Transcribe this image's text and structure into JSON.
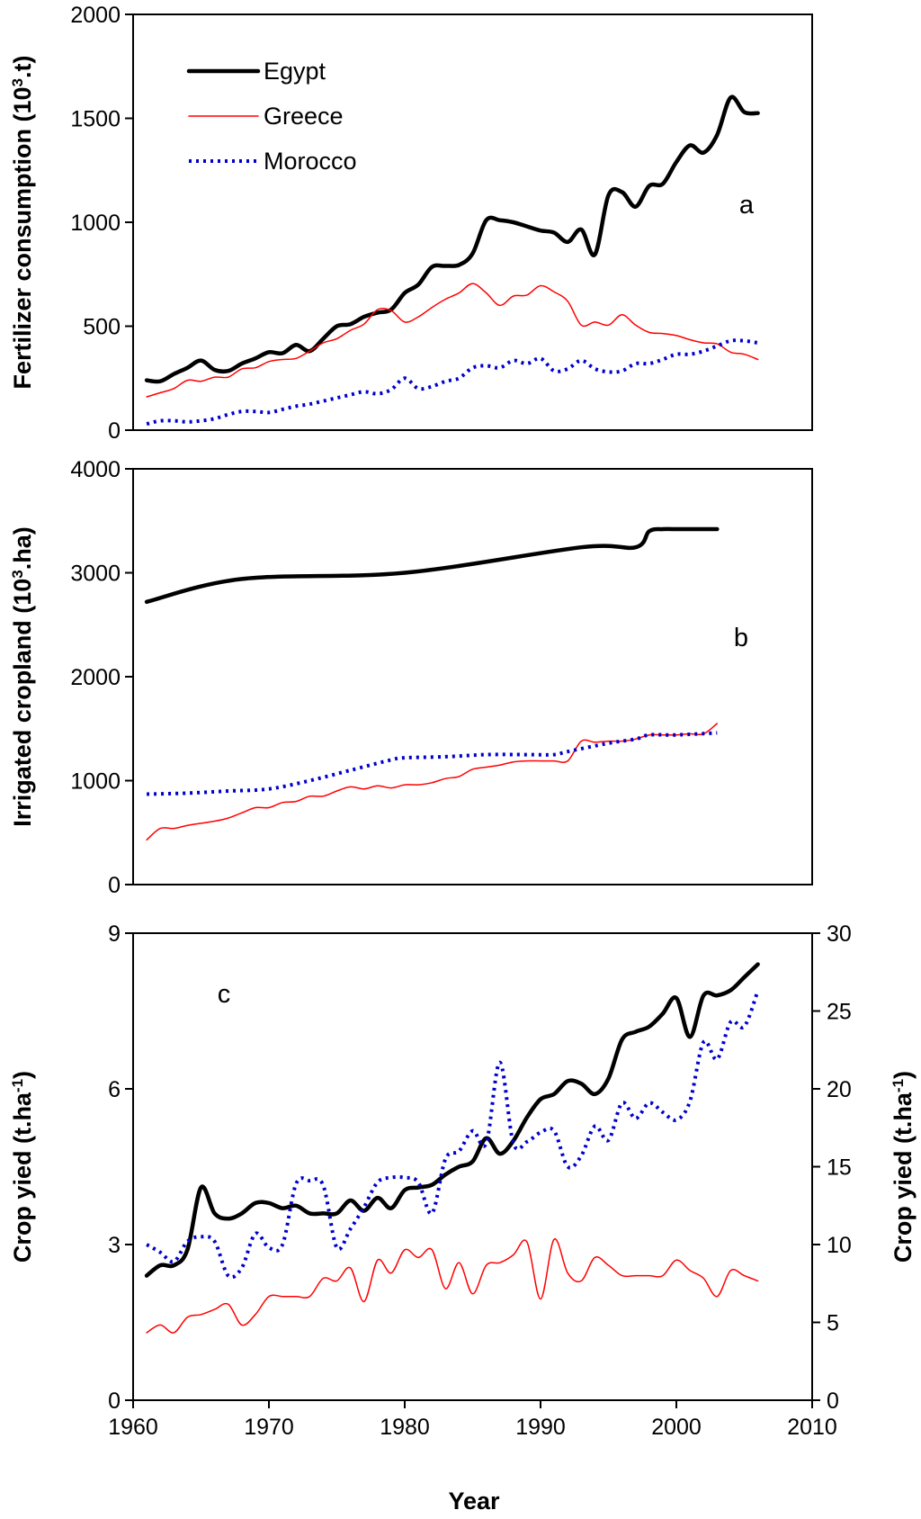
{
  "x_axis": {
    "label": "Year",
    "ticks": [
      "1960",
      "1970",
      "1980",
      "1990",
      "2000",
      "2010"
    ]
  },
  "legend": [
    {
      "name": "Egypt",
      "style": "solid-thick",
      "color": "#000000"
    },
    {
      "name": "Greece",
      "style": "solid-thin",
      "color": "#ff0000"
    },
    {
      "name": "Morocco",
      "style": "dotted",
      "color": "#0000cc"
    }
  ],
  "chart_data": [
    {
      "type": "line",
      "panel_letter": "a",
      "ylabel": "Fertilizer consumption (10³.t)",
      "ylabel_parts": [
        "Fertilizer consumption (10",
        "3",
        ".t)"
      ],
      "xlim": [
        1960,
        2010
      ],
      "ylim": [
        0,
        2000
      ],
      "yticks": [
        "0",
        "500",
        "1000",
        "1500",
        "2000"
      ],
      "legend_position": "top-left",
      "series": [
        {
          "name": "Egypt",
          "color": "#000000",
          "style": "solid-thick",
          "x": [
            1961,
            1962,
            1963,
            1964,
            1965,
            1966,
            1967,
            1968,
            1969,
            1970,
            1971,
            1972,
            1973,
            1974,
            1975,
            1976,
            1977,
            1978,
            1979,
            1980,
            1981,
            1982,
            1983,
            1984,
            1985,
            1986,
            1987,
            1988,
            1989,
            1990,
            1991,
            1992,
            1993,
            1994,
            1995,
            1996,
            1997,
            1998,
            1999,
            2000,
            2001,
            2002,
            2003,
            2004,
            2005,
            2006
          ],
          "y": [
            240,
            235,
            270,
            300,
            335,
            290,
            285,
            320,
            345,
            375,
            370,
            410,
            380,
            440,
            500,
            510,
            545,
            565,
            580,
            660,
            700,
            785,
            790,
            795,
            850,
            1010,
            1010,
            1000,
            980,
            960,
            950,
            905,
            965,
            845,
            1130,
            1145,
            1075,
            1175,
            1185,
            1290,
            1370,
            1335,
            1420,
            1600,
            1530,
            1525
          ]
        },
        {
          "name": "Greece",
          "color": "#ff0000",
          "style": "solid-thin",
          "x": [
            1961,
            1962,
            1963,
            1964,
            1965,
            1966,
            1967,
            1968,
            1969,
            1970,
            1971,
            1972,
            1973,
            1974,
            1975,
            1976,
            1977,
            1978,
            1979,
            1980,
            1981,
            1982,
            1983,
            1984,
            1985,
            1986,
            1987,
            1988,
            1989,
            1990,
            1991,
            1992,
            1993,
            1994,
            1995,
            1996,
            1997,
            1998,
            1999,
            2000,
            2001,
            2002,
            2003,
            2004,
            2005,
            2006
          ],
          "y": [
            160,
            180,
            200,
            240,
            235,
            255,
            255,
            295,
            300,
            330,
            340,
            345,
            380,
            420,
            440,
            480,
            510,
            580,
            575,
            520,
            545,
            590,
            630,
            660,
            705,
            660,
            600,
            645,
            650,
            695,
            665,
            620,
            505,
            520,
            505,
            555,
            505,
            470,
            465,
            455,
            435,
            420,
            415,
            375,
            365,
            340
          ]
        },
        {
          "name": "Morocco",
          "color": "#0000cc",
          "style": "dotted",
          "x": [
            1961,
            1962,
            1963,
            1964,
            1965,
            1966,
            1967,
            1968,
            1969,
            1970,
            1971,
            1972,
            1973,
            1974,
            1975,
            1976,
            1977,
            1978,
            1979,
            1980,
            1981,
            1982,
            1983,
            1984,
            1985,
            1986,
            1987,
            1988,
            1989,
            1990,
            1991,
            1992,
            1993,
            1994,
            1995,
            1996,
            1997,
            1998,
            1999,
            2000,
            2001,
            2002,
            2003,
            2004,
            2005,
            2006
          ],
          "y": [
            30,
            45,
            45,
            40,
            45,
            55,
            75,
            90,
            90,
            85,
            100,
            115,
            125,
            140,
            155,
            170,
            185,
            175,
            195,
            250,
            200,
            210,
            235,
            250,
            300,
            310,
            300,
            335,
            320,
            345,
            285,
            295,
            335,
            295,
            280,
            285,
            320,
            320,
            340,
            365,
            365,
            380,
            405,
            430,
            430,
            420
          ]
        }
      ]
    },
    {
      "type": "line",
      "panel_letter": "b",
      "ylabel": "Irrigated cropland (10³.ha)",
      "ylabel_parts": [
        "Irrigated cropland (10",
        "3",
        ".ha)"
      ],
      "xlim": [
        1960,
        2010
      ],
      "ylim": [
        0,
        4000
      ],
      "yticks": [
        "0",
        "1000",
        "2000",
        "3000",
        "4000"
      ],
      "series": [
        {
          "name": "Egypt",
          "color": "#000000",
          "style": "solid-thick",
          "x": [
            1961,
            1968,
            1980,
            1993,
            1997,
            1998,
            1999,
            2000,
            2003
          ],
          "y": [
            2720,
            2940,
            3000,
            3245,
            3245,
            3400,
            3420,
            3420,
            3420
          ]
        },
        {
          "name": "Greece",
          "color": "#ff0000",
          "style": "solid-thin",
          "x": [
            1961,
            1962,
            1963,
            1964,
            1965,
            1966,
            1967,
            1968,
            1969,
            1970,
            1971,
            1972,
            1973,
            1974,
            1975,
            1976,
            1977,
            1978,
            1979,
            1980,
            1981,
            1982,
            1983,
            1984,
            1985,
            1986,
            1987,
            1988,
            1989,
            1990,
            1991,
            1992,
            1993,
            1994,
            1995,
            1996,
            1997,
            1998,
            1999,
            2000,
            2001,
            2002,
            2003
          ],
          "y": [
            430,
            540,
            540,
            570,
            590,
            610,
            640,
            690,
            740,
            740,
            790,
            800,
            850,
            850,
            900,
            940,
            920,
            950,
            930,
            960,
            960,
            980,
            1020,
            1040,
            1110,
            1130,
            1150,
            1180,
            1190,
            1190,
            1190,
            1190,
            1380,
            1370,
            1380,
            1380,
            1400,
            1440,
            1440,
            1440,
            1450,
            1450,
            1550
          ]
        },
        {
          "name": "Morocco",
          "color": "#0000cc",
          "style": "dotted",
          "x": [
            1961,
            1964,
            1967,
            1970,
            1973,
            1976,
            1979,
            1980,
            1983,
            1986,
            1989,
            1991,
            1992,
            1995,
            1997,
            1998,
            2000,
            2003
          ],
          "y": [
            870,
            880,
            900,
            920,
            1000,
            1100,
            1200,
            1220,
            1230,
            1250,
            1250,
            1250,
            1280,
            1360,
            1400,
            1440,
            1440,
            1460
          ]
        }
      ]
    },
    {
      "type": "line",
      "panel_letter": "c",
      "ylabel": "Crop yied (t.ha⁻¹)",
      "ylabel_parts": [
        "Crop yied (t.ha",
        "-1",
        ")"
      ],
      "ylabel_right": "Crop yied (t.ha⁻¹)",
      "ylabel_right_parts": [
        "Crop yied (t.ha",
        "-1",
        ")"
      ],
      "xlabel": "Year",
      "xlim": [
        1960,
        2010
      ],
      "ylim": [
        0,
        9
      ],
      "ylim_right": [
        0,
        30
      ],
      "yticks": [
        "0",
        "3",
        "6",
        "9"
      ],
      "yticks_right": [
        "0",
        "5",
        "10",
        "15",
        "20",
        "25",
        "30"
      ],
      "series": [
        {
          "name": "Egypt",
          "color": "#000000",
          "style": "solid-thick",
          "axis": "left",
          "x": [
            1961,
            1962,
            1963,
            1964,
            1965,
            1966,
            1967,
            1968,
            1969,
            1970,
            1971,
            1972,
            1973,
            1974,
            1975,
            1976,
            1977,
            1978,
            1979,
            1980,
            1981,
            1982,
            1983,
            1984,
            1985,
            1986,
            1987,
            1988,
            1989,
            1990,
            1991,
            1992,
            1993,
            1994,
            1995,
            1996,
            1997,
            1998,
            1999,
            2000,
            2001,
            2002,
            2003,
            2004,
            2005,
            2006
          ],
          "y": [
            2.4,
            2.6,
            2.6,
            2.9,
            4.1,
            3.6,
            3.5,
            3.6,
            3.8,
            3.8,
            3.7,
            3.75,
            3.6,
            3.6,
            3.6,
            3.85,
            3.65,
            3.9,
            3.7,
            4.05,
            4.1,
            4.15,
            4.35,
            4.5,
            4.6,
            5.05,
            4.75,
            5.0,
            5.45,
            5.8,
            5.9,
            6.15,
            6.1,
            5.9,
            6.2,
            6.95,
            7.1,
            7.2,
            7.45,
            7.75,
            7.0,
            7.8,
            7.8,
            7.9,
            8.15,
            8.4
          ]
        },
        {
          "name": "Greece",
          "color": "#ff0000",
          "style": "solid-thin",
          "axis": "left",
          "x": [
            1961,
            1962,
            1963,
            1964,
            1965,
            1966,
            1967,
            1968,
            1969,
            1970,
            1971,
            1972,
            1973,
            1974,
            1975,
            1976,
            1977,
            1978,
            1979,
            1980,
            1981,
            1982,
            1983,
            1984,
            1985,
            1986,
            1987,
            1988,
            1989,
            1990,
            1991,
            1992,
            1993,
            1994,
            1995,
            1996,
            1997,
            1998,
            1999,
            2000,
            2001,
            2002,
            2003,
            2004,
            2005,
            2006
          ],
          "y": [
            1.3,
            1.45,
            1.3,
            1.6,
            1.65,
            1.75,
            1.85,
            1.45,
            1.65,
            2.0,
            2.0,
            2.0,
            2.0,
            2.35,
            2.3,
            2.55,
            1.9,
            2.7,
            2.45,
            2.9,
            2.75,
            2.9,
            2.15,
            2.65,
            2.05,
            2.6,
            2.65,
            2.8,
            3.05,
            1.95,
            3.1,
            2.45,
            2.3,
            2.75,
            2.6,
            2.4,
            2.4,
            2.4,
            2.4,
            2.7,
            2.5,
            2.35,
            2.0,
            2.5,
            2.4,
            2.3
          ]
        },
        {
          "name": "Morocco",
          "color": "#0000cc",
          "style": "dotted",
          "axis": "right",
          "x": [
            1961,
            1962,
            1963,
            1964,
            1965,
            1966,
            1967,
            1968,
            1969,
            1970,
            1971,
            1972,
            1973,
            1974,
            1975,
            1976,
            1977,
            1978,
            1979,
            1980,
            1981,
            1982,
            1983,
            1984,
            1985,
            1986,
            1987,
            1988,
            1989,
            1990,
            1991,
            1992,
            1993,
            1994,
            1995,
            1996,
            1997,
            1998,
            1999,
            2000,
            2001,
            2002,
            2003,
            2004,
            2005,
            2006
          ],
          "y": [
            10.0,
            9.5,
            8.9,
            10.2,
            10.5,
            10.2,
            8.0,
            8.5,
            10.7,
            9.8,
            10.0,
            13.9,
            14.1,
            13.8,
            9.8,
            11.0,
            12.4,
            14.0,
            14.3,
            14.3,
            14.0,
            12.0,
            15.5,
            16.0,
            17.3,
            16.5,
            21.7,
            16.5,
            16.6,
            17.2,
            17.3,
            15.0,
            15.7,
            17.6,
            16.7,
            19.1,
            18.1,
            19.1,
            18.5,
            18.0,
            19.2,
            23.0,
            21.9,
            24.3,
            24.0,
            26.3
          ]
        }
      ]
    }
  ]
}
